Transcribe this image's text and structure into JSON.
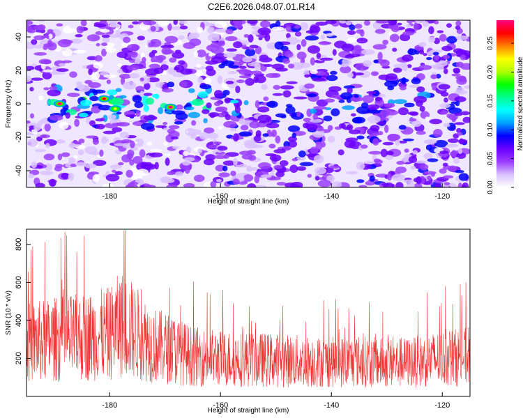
{
  "title": "C2E6.2026.048.07.01.R14",
  "colors": {
    "snr_line": "#f03232",
    "frame": "#000000"
  },
  "chart_data": [
    {
      "type": "heatmap",
      "xlabel": "Height of straight line (km)",
      "ylabel": "Frequency (Hz)",
      "xlim": [
        -195,
        -115
      ],
      "ylim": [
        -50,
        50
      ],
      "xticks": [
        -180,
        -160,
        -140,
        -120
      ],
      "yticks": [
        -40,
        -20,
        0,
        20,
        40
      ],
      "colorbar": {
        "label": "Normalized spectral amplitude",
        "range": [
          0,
          0.29
        ],
        "ticks": [
          "0.00",
          "0.05",
          "0.10",
          "0.15",
          "0.20",
          "0.25"
        ],
        "colors": [
          "#ffffff",
          "#d9c2ff",
          "#9a3dff",
          "#6a00ff",
          "#0000ff",
          "#00a0ff",
          "#00ffff",
          "#00ff90",
          "#00ff00",
          "#b0ff00",
          "#ffff00",
          "#ff8000",
          "#ff0000",
          "#ff0080"
        ]
      },
      "hot_spots": [
        {
          "x": -189,
          "y": 0,
          "value": 0.28
        },
        {
          "x": -181,
          "y": 3,
          "value": 0.26
        },
        {
          "x": -179,
          "y": -3,
          "value": 0.22
        },
        {
          "x": -169,
          "y": -2,
          "value": 0.28
        }
      ]
    },
    {
      "type": "line",
      "xlabel": "Height of straight line (km)",
      "ylabel": "SNR (10 * v/v)",
      "xlim": [
        -195,
        -115
      ],
      "ylim": [
        0,
        880
      ],
      "xticks": [
        -180,
        -160,
        -140,
        -120
      ],
      "yticks": [
        200,
        400,
        600,
        800
      ],
      "series": [
        {
          "x": [
            -195,
            -190,
            -185,
            -180,
            -178,
            -176,
            -172,
            -168,
            -165,
            -160,
            -155,
            -150,
            -145,
            -140,
            -135,
            -130,
            -125,
            -120,
            -115
          ],
          "y": [
            280,
            300,
            310,
            330,
            380,
            350,
            270,
            240,
            210,
            200,
            195,
            190,
            185,
            180,
            185,
            175,
            180,
            200,
            210
          ]
        }
      ]
    }
  ]
}
